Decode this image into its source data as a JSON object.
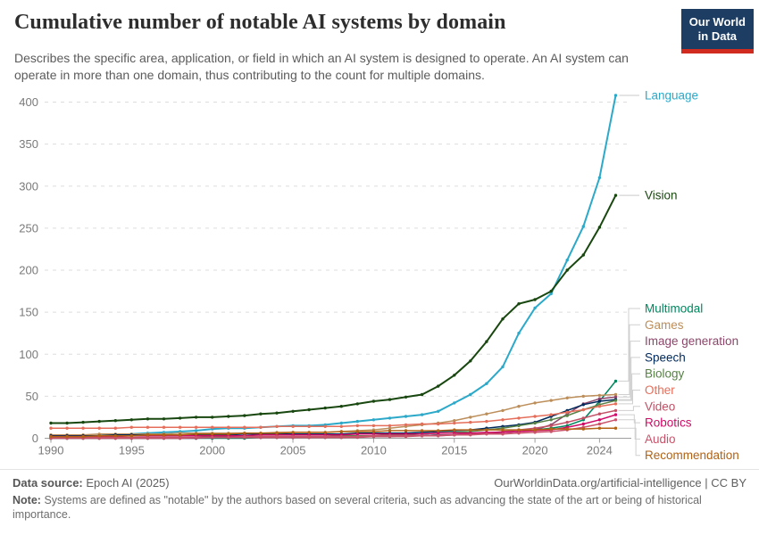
{
  "header": {
    "title": "Cumulative number of notable AI systems by domain",
    "subtitle": "Describes the specific area, application, or field in which an AI system is designed to operate. An AI system can operate in more than one domain, thus contributing to the count for multiple domains.",
    "logo_line1": "Our World",
    "logo_line2": "in Data",
    "logo_bg": "#1D3D63",
    "logo_stripe": "#D12A1E"
  },
  "chart_data": {
    "type": "line",
    "title": "Cumulative number of notable AI systems by domain",
    "xlabel": "",
    "ylabel": "",
    "ylim": [
      0,
      400
    ],
    "yticks": [
      0,
      50,
      100,
      150,
      200,
      250,
      300,
      350,
      400
    ],
    "xticks": [
      1990,
      1995,
      2000,
      2005,
      2010,
      2015,
      2020,
      2024
    ],
    "grid": true,
    "legend_position": "right",
    "x": [
      1990,
      1991,
      1992,
      1993,
      1994,
      1995,
      1996,
      1997,
      1998,
      1999,
      2000,
      2001,
      2002,
      2003,
      2004,
      2005,
      2006,
      2007,
      2008,
      2009,
      2010,
      2011,
      2012,
      2013,
      2014,
      2015,
      2016,
      2017,
      2018,
      2019,
      2020,
      2021,
      2022,
      2023,
      2024,
      2025
    ],
    "series": [
      {
        "name": "Language",
        "color": "#2CA9C9",
        "values": [
          2,
          2,
          3,
          3,
          4,
          5,
          6,
          7,
          8,
          9,
          11,
          12,
          12,
          13,
          14,
          15,
          15,
          16,
          18,
          20,
          22,
          24,
          26,
          28,
          32,
          42,
          52,
          65,
          85,
          125,
          155,
          172,
          212,
          252,
          310,
          408
        ]
      },
      {
        "name": "Vision",
        "color": "#18470F",
        "values": [
          18,
          18,
          19,
          20,
          21,
          22,
          23,
          23,
          24,
          25,
          25,
          26,
          27,
          29,
          30,
          32,
          34,
          36,
          38,
          41,
          44,
          46,
          49,
          52,
          62,
          75,
          92,
          115,
          142,
          160,
          165,
          175,
          200,
          218,
          251,
          289
        ]
      },
      {
        "name": "Multimodal",
        "color": "#00875E",
        "values": [
          0,
          0,
          0,
          0,
          0,
          0,
          0,
          0,
          0,
          0,
          0,
          0,
          0,
          1,
          1,
          1,
          1,
          1,
          1,
          2,
          2,
          2,
          3,
          3,
          4,
          4,
          5,
          6,
          7,
          8,
          10,
          12,
          15,
          22,
          44,
          68
        ]
      },
      {
        "name": "Games",
        "color": "#BC8E5A",
        "values": [
          4,
          4,
          4,
          5,
          5,
          5,
          5,
          5,
          6,
          6,
          6,
          6,
          6,
          6,
          7,
          7,
          7,
          7,
          8,
          9,
          10,
          12,
          14,
          16,
          18,
          21,
          25,
          29,
          33,
          38,
          42,
          45,
          48,
          50,
          51,
          52
        ]
      },
      {
        "name": "Image generation",
        "color": "#8C4569",
        "values": [
          0,
          0,
          0,
          0,
          0,
          0,
          0,
          0,
          0,
          0,
          1,
          1,
          1,
          1,
          1,
          1,
          1,
          1,
          1,
          2,
          2,
          2,
          3,
          3,
          4,
          4,
          5,
          6,
          7,
          8,
          10,
          16,
          29,
          41,
          47,
          49
        ]
      },
      {
        "name": "Speech",
        "color": "#00295B",
        "values": [
          3,
          3,
          3,
          3,
          4,
          4,
          4,
          4,
          4,
          4,
          4,
          4,
          5,
          5,
          5,
          5,
          5,
          5,
          5,
          6,
          6,
          6,
          6,
          7,
          8,
          9,
          10,
          12,
          14,
          16,
          19,
          26,
          33,
          40,
          44,
          46
        ]
      },
      {
        "name": "Biology",
        "color": "#578145",
        "values": [
          1,
          1,
          1,
          1,
          1,
          1,
          1,
          1,
          1,
          1,
          2,
          2,
          2,
          2,
          2,
          2,
          2,
          2,
          3,
          3,
          3,
          4,
          4,
          5,
          6,
          7,
          8,
          10,
          12,
          15,
          18,
          22,
          27,
          34,
          40,
          45
        ]
      },
      {
        "name": "Other",
        "color": "#E56E5A",
        "values": [
          12,
          12,
          12,
          12,
          12,
          13,
          13,
          13,
          13,
          13,
          13,
          13,
          13,
          13,
          14,
          14,
          14,
          14,
          14,
          15,
          15,
          15,
          16,
          17,
          17,
          18,
          19,
          20,
          22,
          24,
          26,
          28,
          31,
          34,
          38,
          41
        ]
      },
      {
        "name": "Video",
        "color": "#C15065",
        "values": [
          0,
          0,
          0,
          0,
          0,
          0,
          0,
          0,
          0,
          1,
          1,
          1,
          1,
          1,
          1,
          1,
          1,
          1,
          1,
          1,
          2,
          2,
          2,
          3,
          3,
          4,
          5,
          6,
          8,
          10,
          12,
          15,
          19,
          24,
          29,
          33
        ]
      },
      {
        "name": "Robotics",
        "color": "#CF0A66",
        "values": [
          2,
          2,
          2,
          2,
          2,
          3,
          3,
          3,
          3,
          3,
          3,
          3,
          3,
          4,
          4,
          4,
          4,
          4,
          4,
          5,
          5,
          5,
          5,
          5,
          6,
          6,
          6,
          7,
          7,
          8,
          9,
          10,
          13,
          17,
          22,
          28
        ]
      },
      {
        "name": "Audio",
        "color": "#C9536A",
        "values": [
          1,
          1,
          1,
          1,
          1,
          1,
          1,
          1,
          1,
          1,
          1,
          1,
          2,
          2,
          2,
          2,
          2,
          2,
          2,
          2,
          3,
          3,
          3,
          3,
          3,
          4,
          4,
          5,
          5,
          6,
          7,
          8,
          10,
          13,
          17,
          22
        ]
      },
      {
        "name": "Recommendation",
        "color": "#B16214",
        "values": [
          2,
          2,
          2,
          3,
          3,
          3,
          4,
          4,
          4,
          5,
          5,
          5,
          6,
          6,
          6,
          7,
          7,
          7,
          8,
          8,
          8,
          9,
          9,
          9,
          9,
          10,
          10,
          10,
          10,
          10,
          10,
          11,
          11,
          11,
          12,
          12
        ]
      }
    ]
  },
  "footer": {
    "source_label": "Data source:",
    "source_value": "Epoch AI (2025)",
    "attribution": "OurWorldinData.org/artificial-intelligence | CC BY",
    "note_label": "Note:",
    "note_text": "Systems are defined as \"notable\" by the authors based on several criteria, such as advancing the state of the art or being of historical importance."
  }
}
